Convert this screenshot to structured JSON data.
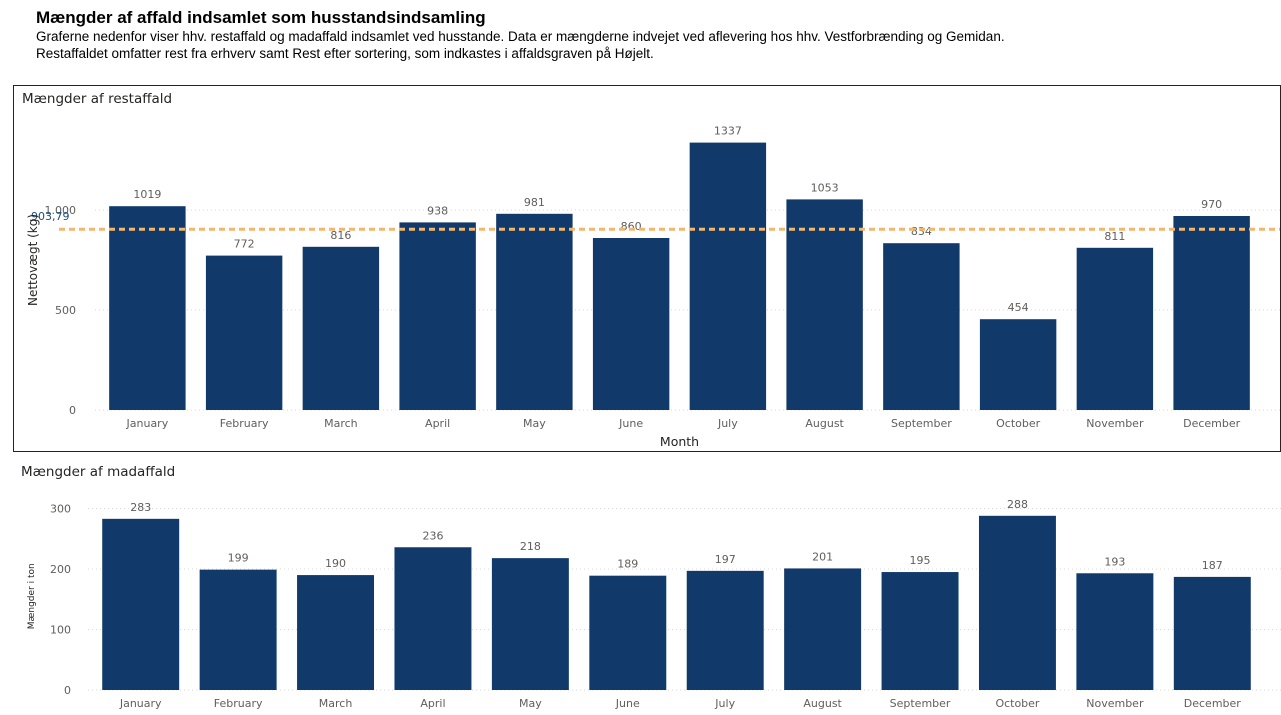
{
  "header": {
    "title": "Mængder af affald indsamlet som husstandsindsamling",
    "line1": "Graferne nedenfor viser hhv. restaffald og madaffald indsamlet ved husstande. Data er mængderne indvejet ved aflevering hos hhv. Vestforbrænding og Gemidan.",
    "line2": "Restaffaldet omfatter rest fra erhverv samt Rest efter sortering, som indkastes i affaldsgraven på Højelt."
  },
  "colors": {
    "bar": "#113A6B",
    "reference_line": "#F2B76B",
    "grid": "#D9D9D9",
    "label": "#605E5C"
  },
  "chart_data": [
    {
      "type": "bar",
      "title": "Mængder af restaffald",
      "xlabel": "Month",
      "ylabel": "Nettovægt (kg)",
      "categories": [
        "January",
        "February",
        "March",
        "April",
        "May",
        "June",
        "July",
        "August",
        "September",
        "October",
        "November",
        "December"
      ],
      "values": [
        1019,
        772,
        816,
        938,
        981,
        860,
        1337,
        1053,
        834,
        454,
        811,
        970
      ],
      "ylim": [
        0,
        1500
      ],
      "yticks": [
        0,
        500,
        1000
      ],
      "ytick_labels": [
        "0",
        "500",
        "1.000"
      ],
      "reference_line": {
        "value": 903.79,
        "label": "903,79",
        "style": "dashed"
      },
      "grid": true,
      "data_labels": true
    },
    {
      "type": "bar",
      "title": "Mængder af madaffald",
      "xlabel": "",
      "ylabel": "Mængder i ton",
      "categories": [
        "January",
        "February",
        "March",
        "April",
        "May",
        "June",
        "July",
        "August",
        "September",
        "October",
        "November",
        "December"
      ],
      "values": [
        283,
        199,
        190,
        236,
        218,
        189,
        197,
        201,
        195,
        288,
        193,
        187
      ],
      "ylim": [
        0,
        310
      ],
      "yticks": [
        0,
        100,
        200,
        300
      ],
      "ytick_labels": [
        "0",
        "100",
        "200",
        "300"
      ],
      "grid": true,
      "data_labels": true
    }
  ]
}
